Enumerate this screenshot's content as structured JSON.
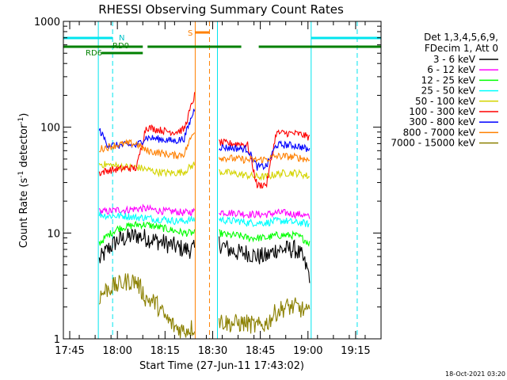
{
  "chart_data": {
    "type": "line",
    "title": "RHESSI Observing Summary Count Rates",
    "xlabel": "Start Time (27-Jun-11 17:43:02)",
    "ylabel_main": "Count Rate (s",
    "ylabel_sup1": "-1",
    "ylabel_mid": " detector",
    "ylabel_sup2": "-1",
    "ylabel_end": ")",
    "footer": "18-Oct-2021 03:20",
    "xlim_minutes": [
      0,
      100
    ],
    "ylim": [
      1,
      1000
    ],
    "yscale": "log",
    "x_ticks": [
      {
        "label": "17:45",
        "value": 2
      },
      {
        "label": "18:00",
        "value": 17
      },
      {
        "label": "18:15",
        "value": 32
      },
      {
        "label": "18:30",
        "value": 47
      },
      {
        "label": "18:45",
        "value": 62
      },
      {
        "label": "19:00",
        "value": 77
      },
      {
        "label": "19:15",
        "value": 92
      }
    ],
    "y_ticks": [
      {
        "label": "1",
        "value": 1
      },
      {
        "label": "10",
        "value": 10
      },
      {
        "label": "100",
        "value": 100
      },
      {
        "label": "1000",
        "value": 1000
      }
    ],
    "legend": {
      "header1": "Det 1,3,4,5,6,9,",
      "header2": "FDecim 1, Att 0",
      "placement": "outside-right"
    },
    "annotations": {
      "n_label": "N",
      "rd0_label": "RD0",
      "rd6_label": "RD6",
      "s_label": "S"
    },
    "flag_bars": [
      {
        "name": "N",
        "color": "#00e5ee",
        "segments": [
          [
            0,
            15.5
          ],
          [
            78,
            100
          ]
        ]
      },
      {
        "name": "RD0",
        "color": "#008000",
        "segments": [
          [
            0,
            25
          ],
          [
            26.5,
            56
          ],
          [
            61.5,
            100
          ]
        ]
      },
      {
        "name": "RD6",
        "color": "#008000",
        "segments": [
          [
            12,
            25
          ]
        ]
      },
      {
        "name": "S",
        "color": "#ff8000",
        "segments": [
          [
            41.5,
            46
          ]
        ]
      }
    ],
    "vertical_lines": [
      {
        "x": 0,
        "color": "#00e5ee",
        "dashed": false
      },
      {
        "x": 11,
        "color": "#00e5ee",
        "dashed": false
      },
      {
        "x": 15.5,
        "color": "#00e5ee",
        "dashed": true
      },
      {
        "x": 41.5,
        "color": "#ff8000",
        "dashed": false
      },
      {
        "x": 46,
        "color": "#ff8000",
        "dashed": true
      },
      {
        "x": 48.5,
        "color": "#00e5ee",
        "dashed": false
      },
      {
        "x": 78,
        "color": "#00e5ee",
        "dashed": false
      },
      {
        "x": 92.5,
        "color": "#00e5ee",
        "dashed": true
      }
    ],
    "segments": [
      [
        11.3,
        41.3
      ],
      [
        49,
        77.5
      ]
    ],
    "series": [
      {
        "name": "3 - 6 keV",
        "color": "#000000",
        "points": [
          [
            11.3,
            5.5
          ],
          [
            14,
            7
          ],
          [
            17,
            8.5
          ],
          [
            20,
            9
          ],
          [
            23,
            9.5
          ],
          [
            26,
            9
          ],
          [
            29,
            8.5
          ],
          [
            32,
            8
          ],
          [
            35,
            7.5
          ],
          [
            38,
            7
          ],
          [
            41.3,
            7
          ],
          [
            49,
            8
          ],
          [
            52,
            7
          ],
          [
            55,
            6.5
          ],
          [
            58,
            6.5
          ],
          [
            61,
            6
          ],
          [
            64,
            6
          ],
          [
            67,
            7
          ],
          [
            70,
            7
          ],
          [
            73,
            7
          ],
          [
            75,
            6
          ],
          [
            77.5,
            4
          ]
        ]
      },
      {
        "name": "6 - 12 keV",
        "color": "#ff00ff",
        "points": [
          [
            11.3,
            16
          ],
          [
            14,
            16
          ],
          [
            17,
            16.5
          ],
          [
            20,
            16.5
          ],
          [
            23,
            17
          ],
          [
            26,
            17
          ],
          [
            29,
            16.5
          ],
          [
            32,
            16
          ],
          [
            35,
            16
          ],
          [
            38,
            15.5
          ],
          [
            41.3,
            16
          ],
          [
            49,
            16
          ],
          [
            52,
            15.5
          ],
          [
            55,
            15.5
          ],
          [
            58,
            15
          ],
          [
            61,
            15
          ],
          [
            64,
            15
          ],
          [
            67,
            15.5
          ],
          [
            70,
            15.5
          ],
          [
            73,
            15
          ],
          [
            75,
            15
          ],
          [
            77.5,
            14
          ]
        ]
      },
      {
        "name": "12 - 25 keV",
        "color": "#00ff00",
        "points": [
          [
            11.3,
            8
          ],
          [
            14,
            9.5
          ],
          [
            17,
            11
          ],
          [
            20,
            11.5
          ],
          [
            23,
            12
          ],
          [
            26,
            12
          ],
          [
            29,
            11.5
          ],
          [
            32,
            11
          ],
          [
            35,
            10.5
          ],
          [
            38,
            10
          ],
          [
            41.3,
            10
          ],
          [
            49,
            10
          ],
          [
            52,
            9.5
          ],
          [
            55,
            9.5
          ],
          [
            58,
            9
          ],
          [
            61,
            9
          ],
          [
            64,
            9
          ],
          [
            67,
            9.5
          ],
          [
            70,
            9.5
          ],
          [
            73,
            9.5
          ],
          [
            75,
            9
          ],
          [
            77.5,
            8
          ]
        ]
      },
      {
        "name": "25 - 50 keV",
        "color": "#00ffff",
        "points": [
          [
            11.3,
            15
          ],
          [
            14,
            14.5
          ],
          [
            17,
            14.5
          ],
          [
            20,
            14.5
          ],
          [
            23,
            14
          ],
          [
            26,
            14
          ],
          [
            29,
            13.5
          ],
          [
            32,
            13.5
          ],
          [
            35,
            13
          ],
          [
            38,
            13
          ],
          [
            41.3,
            13.5
          ],
          [
            49,
            13.5
          ],
          [
            52,
            13
          ],
          [
            55,
            13
          ],
          [
            58,
            12.5
          ],
          [
            61,
            12.5
          ],
          [
            64,
            12.5
          ],
          [
            67,
            13
          ],
          [
            70,
            13
          ],
          [
            73,
            12.5
          ],
          [
            75,
            12.5
          ],
          [
            77.5,
            12
          ]
        ]
      },
      {
        "name": "50 - 100 keV",
        "color": "#d4d400",
        "points": [
          [
            11.3,
            45
          ],
          [
            14,
            44
          ],
          [
            17,
            43
          ],
          [
            20,
            42
          ],
          [
            23,
            42
          ],
          [
            26,
            40
          ],
          [
            29,
            38
          ],
          [
            32,
            37
          ],
          [
            35,
            37
          ],
          [
            38,
            38
          ],
          [
            41.3,
            45
          ],
          [
            49,
            38
          ],
          [
            52,
            37
          ],
          [
            55,
            36
          ],
          [
            58,
            35
          ],
          [
            61,
            34
          ],
          [
            64,
            34
          ],
          [
            67,
            36
          ],
          [
            70,
            37
          ],
          [
            73,
            37
          ],
          [
            75,
            36
          ],
          [
            77.5,
            34
          ]
        ]
      },
      {
        "name": "100 - 300 keV",
        "color": "#ff0000",
        "points": [
          [
            11.3,
            37
          ],
          [
            14,
            39
          ],
          [
            17,
            40
          ],
          [
            20,
            41
          ],
          [
            23,
            41
          ],
          [
            26,
            100
          ],
          [
            29,
            96
          ],
          [
            32,
            92
          ],
          [
            35,
            90
          ],
          [
            38,
            95
          ],
          [
            41.3,
            200
          ],
          [
            49,
            72
          ],
          [
            52,
            70
          ],
          [
            55,
            70
          ],
          [
            58,
            68
          ],
          [
            61,
            28
          ],
          [
            64,
            29
          ],
          [
            67,
            88
          ],
          [
            70,
            88
          ],
          [
            73,
            87
          ],
          [
            75,
            85
          ],
          [
            77.5,
            80
          ]
        ]
      },
      {
        "name": "300 - 800 keV",
        "color": "#0000ff",
        "points": [
          [
            11.3,
            95
          ],
          [
            14,
            68
          ],
          [
            17,
            67
          ],
          [
            20,
            68
          ],
          [
            23,
            67
          ],
          [
            26,
            80
          ],
          [
            29,
            78
          ],
          [
            32,
            76
          ],
          [
            35,
            74
          ],
          [
            38,
            78
          ],
          [
            41.3,
            150
          ],
          [
            49,
            65
          ],
          [
            52,
            64
          ],
          [
            55,
            63
          ],
          [
            58,
            62
          ],
          [
            61,
            42
          ],
          [
            64,
            43
          ],
          [
            67,
            68
          ],
          [
            70,
            68
          ],
          [
            73,
            67
          ],
          [
            75,
            65
          ],
          [
            77.5,
            60
          ]
        ]
      },
      {
        "name": "800 - 7000 keV",
        "color": "#ff8000",
        "points": [
          [
            11.3,
            62
          ],
          [
            14,
            65
          ],
          [
            17,
            68
          ],
          [
            20,
            70
          ],
          [
            23,
            70
          ],
          [
            26,
            60
          ],
          [
            29,
            58
          ],
          [
            32,
            56
          ],
          [
            35,
            54
          ],
          [
            38,
            56
          ],
          [
            41.3,
            95
          ],
          [
            49,
            52
          ],
          [
            52,
            51
          ],
          [
            55,
            50
          ],
          [
            58,
            49
          ],
          [
            61,
            49
          ],
          [
            64,
            50
          ],
          [
            67,
            53
          ],
          [
            70,
            53
          ],
          [
            73,
            52
          ],
          [
            75,
            51
          ],
          [
            77.5,
            49
          ]
        ]
      },
      {
        "name": "7000 - 15000 keV",
        "color": "#8b8000",
        "points": [
          [
            11.3,
            2.5
          ],
          [
            14,
            3
          ],
          [
            17,
            3.2
          ],
          [
            20,
            3.5
          ],
          [
            23,
            3.5
          ],
          [
            26,
            2.4
          ],
          [
            29,
            2.2
          ],
          [
            32,
            1.6
          ],
          [
            35,
            1.3
          ],
          [
            38,
            1.2
          ],
          [
            41.3,
            1.3
          ],
          [
            49,
            1.5
          ],
          [
            52,
            1.4
          ],
          [
            55,
            1.4
          ],
          [
            58,
            1.4
          ],
          [
            61,
            1.3
          ],
          [
            64,
            1.4
          ],
          [
            67,
            1.8
          ],
          [
            70,
            2.0
          ],
          [
            73,
            2.0
          ],
          [
            75,
            1.9
          ],
          [
            77.5,
            1.7
          ]
        ]
      }
    ]
  }
}
